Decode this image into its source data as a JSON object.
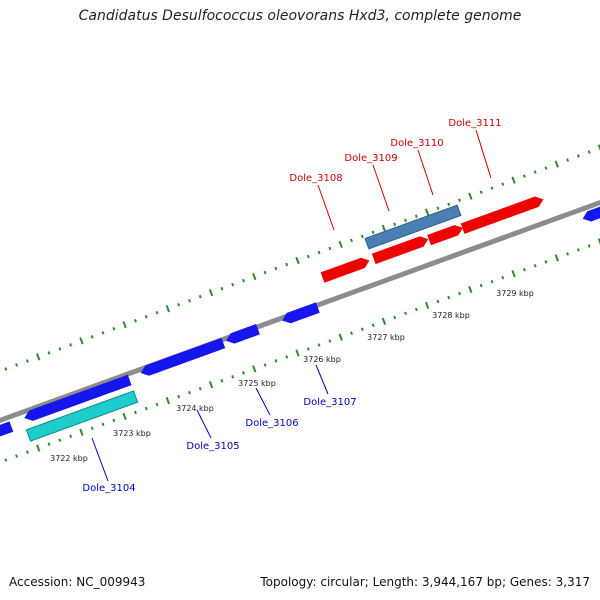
{
  "title": "Candidatus Desulfococcus oleovorans Hxd3, complete genome",
  "footer": {
    "accession": "Accession: NC_009943",
    "summary": "Topology: circular; Length: 3,944,167 bp; Genes: 3,317"
  },
  "colors": {
    "backbone": "#8c8c8c",
    "ticks": "#2e8b2e",
    "forward_gene": "#ee0000",
    "forward_label": "#cc0000",
    "reverse_gene": "#1515ee",
    "reverse_label": "#0000bb",
    "highlight_steel": "#4a7fb4",
    "highlight_cyan": "#1ecccc"
  },
  "scale_labels": [
    "3722 kbp",
    "3723 kbp",
    "3724 kbp",
    "3725 kbp",
    "3726 kbp",
    "3727 kbp",
    "3728 kbp",
    "3729 kbp"
  ],
  "forward_genes": [
    {
      "label": "Dole_3108"
    },
    {
      "label": "Dole_3109"
    },
    {
      "label": "Dole_3110"
    },
    {
      "label": "Dole_3111"
    }
  ],
  "reverse_genes": [
    {
      "label": "Dole_3104"
    },
    {
      "label": "Dole_3105"
    },
    {
      "label": "Dole_3106"
    },
    {
      "label": "Dole_3107"
    }
  ]
}
